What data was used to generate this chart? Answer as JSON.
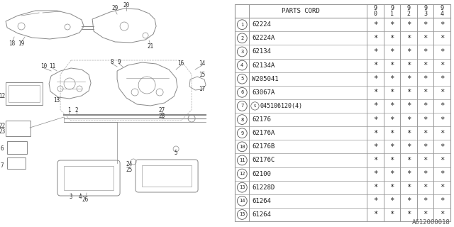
{
  "background_color": "#ffffff",
  "table": {
    "rows": [
      [
        "1",
        "62224"
      ],
      [
        "2",
        "62224A"
      ],
      [
        "3",
        "62134"
      ],
      [
        "4",
        "62134A"
      ],
      [
        "5",
        "W205041"
      ],
      [
        "6",
        "63067A"
      ],
      [
        "7",
        "S045106120(4)"
      ],
      [
        "8",
        "62176"
      ],
      [
        "9",
        "62176A"
      ],
      [
        "10",
        "62176B"
      ],
      [
        "11",
        "62176C"
      ],
      [
        "12",
        "62100"
      ],
      [
        "13",
        "61228D"
      ],
      [
        "14",
        "61264"
      ],
      [
        "15",
        "61264"
      ]
    ],
    "header_label": "PARTS CORD",
    "year_cols": [
      "9\n0",
      "9\n1",
      "9\n2",
      "9\n3",
      "9\n4"
    ],
    "cell_value": "*",
    "line_color": "#999999",
    "text_color": "#222222",
    "font_size": 6.5
  },
  "diagram_label": "A612000018",
  "diagram_label_color": "#555555",
  "diagram_label_fontsize": 6.5
}
